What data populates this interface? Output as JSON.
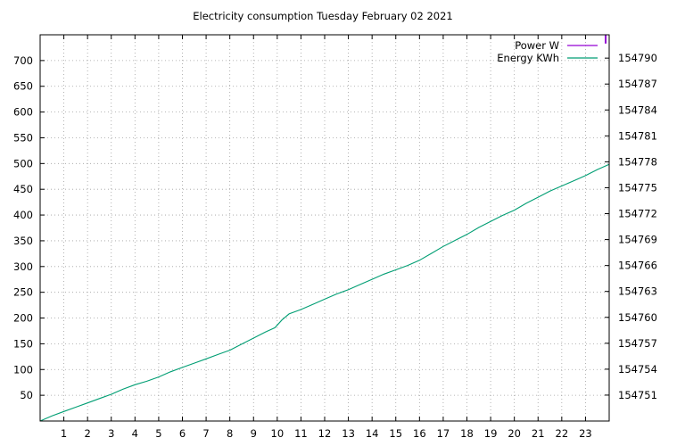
{
  "chart_data": {
    "type": "line",
    "title": "Electricity consumption Tuesday February 02 2021",
    "xlabel": "",
    "ylabel": "",
    "y2label": "",
    "xlim": [
      0,
      24
    ],
    "ylim": [
      0,
      750
    ],
    "y2lim": [
      154748,
      154792.7
    ],
    "grid": true,
    "legend_position": "top-right",
    "x_ticks": [
      1,
      2,
      3,
      4,
      5,
      6,
      7,
      8,
      9,
      10,
      11,
      12,
      13,
      14,
      15,
      16,
      17,
      18,
      19,
      20,
      21,
      22,
      23
    ],
    "y_ticks": [
      50,
      100,
      150,
      200,
      250,
      300,
      350,
      400,
      450,
      500,
      550,
      600,
      650,
      700
    ],
    "y2_ticks": [
      154751,
      154754,
      154757,
      154760,
      154763,
      154766,
      154769,
      154772,
      154775,
      154778,
      154781,
      154784,
      154787,
      154790
    ],
    "series": [
      {
        "name": "Power W",
        "color": "#9400d3",
        "axis": "y",
        "x": [
          23.85,
          23.85
        ],
        "values": [
          750,
          733
        ]
      },
      {
        "name": "Energy KWh",
        "color": "#009e73",
        "axis": "y2",
        "x": [
          0,
          0.5,
          1,
          1.5,
          2,
          2.5,
          3,
          3.5,
          4,
          4.5,
          5,
          5.5,
          6,
          6.5,
          7,
          7.5,
          8,
          8.5,
          9,
          9.5,
          9.9,
          10.2,
          10.5,
          11,
          11.5,
          12,
          12.5,
          13,
          13.5,
          14,
          14.5,
          15,
          15.5,
          16,
          16.5,
          17,
          17.5,
          18,
          18.5,
          19,
          19.5,
          20,
          20.5,
          21,
          21.5,
          22,
          22.5,
          23,
          23.5,
          24
        ],
        "values": [
          154748.0,
          154748.6,
          154749.1,
          154749.6,
          154750.1,
          154750.6,
          154751.1,
          154751.7,
          154752.2,
          154752.6,
          154753.1,
          154753.7,
          154754.2,
          154754.7,
          154755.2,
          154755.7,
          154756.2,
          154756.9,
          154757.6,
          154758.3,
          154758.8,
          154759.7,
          154760.4,
          154760.9,
          154761.5,
          154762.1,
          154762.7,
          154763.2,
          154763.8,
          154764.4,
          154765.0,
          154765.5,
          154766.0,
          154766.6,
          154767.4,
          154768.2,
          154768.9,
          154769.6,
          154770.4,
          154771.1,
          154771.8,
          154772.4,
          154773.2,
          154773.9,
          154774.6,
          154775.2,
          154775.8,
          154776.4,
          154777.1,
          154777.7
        ]
      }
    ]
  }
}
